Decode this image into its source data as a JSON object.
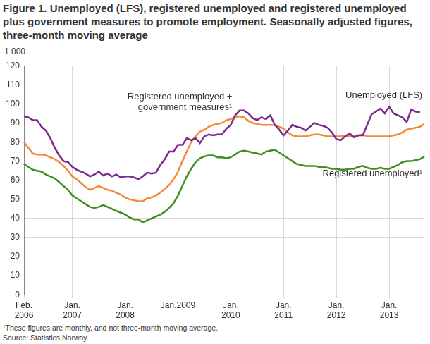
{
  "chart_data": {
    "type": "line",
    "title": "Figure 1. Unemployed (LFS), registered unemployed and registered unemployed plus government measures to promote employment. Seasonally adjusted figures, three-month moving average",
    "ylabel": "1 000",
    "footnote": "¹These figures are monthly, and not three-month moving average.",
    "source": "Source: Statistics Norway.",
    "categories": [
      "Feb. 2006",
      null,
      null,
      null,
      null,
      null,
      null,
      null,
      null,
      null,
      null,
      "Jan. 2007",
      null,
      null,
      null,
      null,
      null,
      null,
      null,
      null,
      null,
      null,
      null,
      "Jan. 2008",
      null,
      null,
      null,
      null,
      null,
      null,
      null,
      null,
      null,
      null,
      null,
      "Jan.2009",
      null,
      null,
      null,
      null,
      null,
      null,
      null,
      null,
      null,
      null,
      null,
      "Jan. 2010",
      null,
      null,
      null,
      null,
      null,
      null,
      null,
      null,
      null,
      null,
      null,
      "Jan. 2011",
      null,
      null,
      null,
      null,
      null,
      null,
      null,
      null,
      null,
      null,
      null,
      "Jan. 2012",
      null,
      null,
      null,
      null,
      null,
      null,
      null,
      null,
      null,
      null,
      null,
      "Jan. 2013",
      null,
      null,
      null,
      null,
      null,
      null,
      null,
      null
    ],
    "series": [
      {
        "name": "Unemployed (LFS)",
        "color": "#7a2a8c",
        "values": [
          93.5,
          93,
          91.5,
          91.5,
          88,
          86,
          82,
          77,
          73,
          70,
          69.5,
          67,
          65.5,
          64.5,
          63.5,
          62,
          63,
          64.5,
          62.5,
          63.5,
          62,
          63,
          61.5,
          62,
          62,
          61.5,
          60.5,
          62,
          64,
          63.5,
          64,
          68,
          71,
          75,
          75,
          78.5,
          78.5,
          82,
          81,
          82,
          79.5,
          83,
          84,
          83.5,
          84,
          84,
          87,
          89,
          94,
          96.5,
          96.5,
          95,
          92.5,
          91.5,
          93,
          92,
          94,
          89,
          86.5,
          83.5,
          86,
          89,
          88,
          87.5,
          86,
          88,
          90,
          89,
          88.5,
          87.5,
          85,
          81.5,
          81,
          83,
          84.5,
          82.5,
          83.5,
          83.5,
          89,
          94.5,
          96,
          97.5,
          95,
          98.5,
          95,
          94,
          93,
          90.5,
          97,
          96,
          95.5,
          null
        ]
      },
      {
        "name": "Registered unemployed + government measures¹",
        "color": "#f28a3a",
        "values": [
          80,
          77,
          74,
          73.5,
          73.5,
          73,
          72,
          71,
          69.5,
          67.5,
          65,
          62,
          60.5,
          58.5,
          56.5,
          55,
          56,
          57,
          56,
          55,
          54.5,
          53.5,
          52.5,
          51,
          50,
          49.5,
          49,
          49,
          50.5,
          51,
          52,
          53.5,
          55.5,
          57.5,
          60.5,
          64.5,
          70,
          75,
          80,
          83,
          85.5,
          86.5,
          88,
          89,
          89.5,
          90,
          91.5,
          92,
          93,
          93.5,
          93,
          91,
          90,
          89.5,
          89,
          89,
          89,
          89,
          88,
          87,
          85,
          83.5,
          83,
          83,
          83,
          83.5,
          84,
          84,
          83.5,
          83,
          83,
          83,
          83,
          83.5,
          83,
          83,
          83.5,
          84,
          83,
          83,
          83,
          83,
          83,
          83,
          83.5,
          84,
          85,
          86.5,
          87,
          87.5,
          88,
          89.5
        ]
      },
      {
        "name": "Registered unemployed¹",
        "color": "#3f8f1d",
        "values": [
          68.5,
          67,
          65.5,
          65,
          64.5,
          63,
          62,
          61,
          59,
          57,
          55,
          52,
          50.5,
          49,
          47.5,
          46,
          45.5,
          46,
          47,
          46,
          45,
          44,
          43,
          42,
          40.5,
          39.5,
          39.5,
          38,
          39,
          40,
          41,
          42,
          43.5,
          45.5,
          48,
          52,
          57,
          62,
          66,
          69.5,
          71.5,
          72.5,
          73,
          73,
          72,
          72,
          71.5,
          72,
          73.5,
          75,
          75.5,
          75,
          74.5,
          74,
          73.5,
          75,
          75.5,
          76,
          74.5,
          73,
          71.5,
          70,
          68.5,
          68,
          67.5,
          67.5,
          67.5,
          67,
          67,
          66.5,
          66,
          66,
          65.5,
          65.5,
          66,
          66,
          67,
          67.5,
          66.5,
          66,
          66,
          66.5,
          66,
          66,
          67,
          68,
          69.5,
          70,
          70,
          70.5,
          71,
          72.5
        ]
      }
    ],
    "ylim": [
      0,
      120
    ],
    "yticks": [
      0,
      10,
      20,
      30,
      40,
      50,
      60,
      70,
      80,
      90,
      100,
      110,
      120
    ],
    "grid": true
  }
}
